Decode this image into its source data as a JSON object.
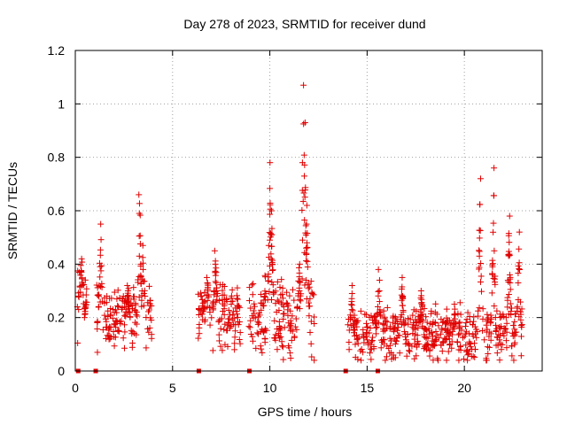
{
  "chart_data": {
    "type": "scatter",
    "title": "Day 278 of 2023, SRMTID for receiver dund",
    "xlabel": "GPS time / hours",
    "ylabel": "SRMTID / TECUs",
    "xlim": [
      0,
      24
    ],
    "ylim": [
      0,
      1.2
    ],
    "xticks": [
      0,
      5,
      10,
      15,
      20
    ],
    "yticks": [
      0,
      0.2,
      0.4,
      0.6,
      0.8,
      1,
      1.2
    ],
    "xtick_labels": [
      "0",
      "5",
      "10",
      "15",
      "20"
    ],
    "ytick_labels": [
      "0",
      "0.2",
      "0.4",
      "0.6",
      "0.8",
      "1",
      "1.2"
    ],
    "grid": true,
    "marker": "+",
    "series_color": "#e00000",
    "data_gap_markers_x": [
      0.15,
      1.05,
      6.35,
      8.95,
      13.9,
      15.55
    ],
    "segments": [
      {
        "start": 0.1,
        "end": 0.6,
        "base": 0.27,
        "spread": 0.12,
        "peaks": [
          [
            0.3,
            0.42
          ],
          [
            0.5,
            0.2
          ]
        ]
      },
      {
        "start": 1.1,
        "end": 4.0,
        "base": 0.2,
        "spread": 0.1,
        "peaks": [
          [
            1.3,
            0.55
          ],
          [
            2.7,
            0.32
          ],
          [
            3.3,
            0.66
          ],
          [
            3.5,
            0.47
          ]
        ]
      },
      {
        "start": 6.3,
        "end": 8.5,
        "base": 0.22,
        "spread": 0.1,
        "peaks": [
          [
            6.8,
            0.35
          ],
          [
            7.2,
            0.45
          ],
          [
            8.2,
            0.08
          ]
        ]
      },
      {
        "start": 8.9,
        "end": 12.3,
        "base": 0.2,
        "spread": 0.12,
        "peaks": [
          [
            10.0,
            0.78
          ],
          [
            10.1,
            0.6
          ],
          [
            11.7,
            1.07
          ],
          [
            11.8,
            0.93
          ],
          [
            11.9,
            0.62
          ],
          [
            11.5,
            0.4
          ]
        ]
      },
      {
        "start": 14.0,
        "end": 23.0,
        "base": 0.14,
        "spread": 0.08,
        "peaks": [
          [
            14.2,
            0.32
          ],
          [
            15.6,
            0.38
          ],
          [
            16.8,
            0.35
          ],
          [
            17.8,
            0.3
          ],
          [
            19.5,
            0.25
          ],
          [
            20.8,
            0.72
          ],
          [
            21.5,
            0.76
          ],
          [
            22.3,
            0.58
          ],
          [
            22.8,
            0.52
          ]
        ]
      }
    ]
  }
}
